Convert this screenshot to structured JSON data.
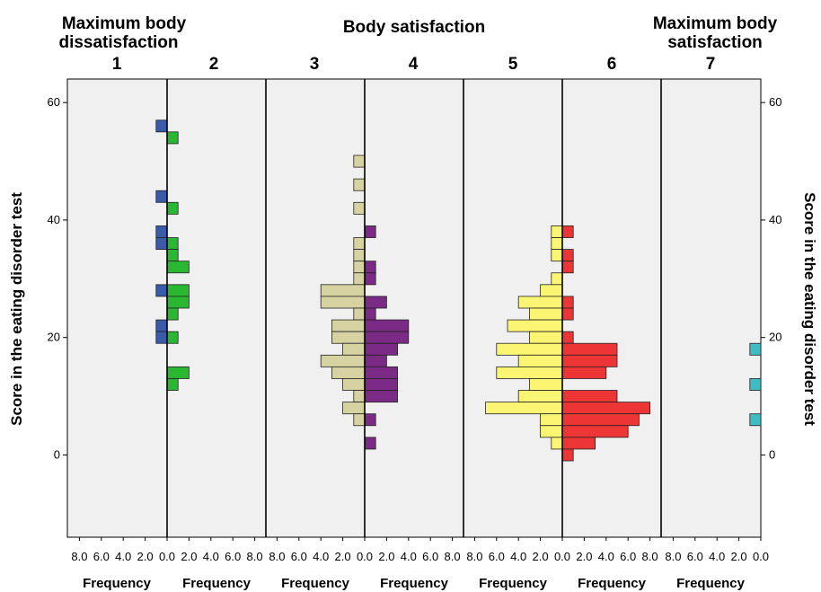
{
  "chart_data": {
    "type": "bar",
    "subtype": "back-to-back frequency histograms (population pyramid style)",
    "headers": {
      "left": [
        "Maximum body",
        "dissatisfaction"
      ],
      "center": "Body satisfaction",
      "right": [
        "Maximum body",
        "satisfaction"
      ]
    },
    "groups": [
      "1",
      "2",
      "3",
      "4",
      "5",
      "6",
      "7"
    ],
    "ylabel": "Score in the eating disorder test",
    "xlabel": "Frequency",
    "ylim": [
      -14,
      64
    ],
    "yticks": [
      0,
      20,
      40,
      60
    ],
    "xlim": [
      0,
      8
    ],
    "xtick_labels": [
      "8.0",
      "6.0",
      "4.0",
      "2.0",
      "0.0",
      "2.0",
      "4.0",
      "6.0",
      "8.0"
    ],
    "xtick_labels_last_panel": [
      "8.0",
      "6.0",
      "4.0",
      "2.0",
      "0.0"
    ],
    "bin_width": 2,
    "grid": false,
    "legend": "none",
    "series": [
      {
        "group": "1",
        "side": "left",
        "color": "#3a5aaa",
        "bins": [
          {
            "y": 56,
            "f": 1
          },
          {
            "y": 44,
            "f": 1
          },
          {
            "y": 38,
            "f": 1
          },
          {
            "y": 36,
            "f": 1
          },
          {
            "y": 28,
            "f": 1
          },
          {
            "y": 22,
            "f": 1
          },
          {
            "y": 20,
            "f": 1
          }
        ]
      },
      {
        "group": "2",
        "side": "right",
        "color": "#2ab832",
        "bins": [
          {
            "y": 54,
            "f": 1
          },
          {
            "y": 42,
            "f": 1
          },
          {
            "y": 36,
            "f": 1
          },
          {
            "y": 34,
            "f": 1
          },
          {
            "y": 32,
            "f": 2
          },
          {
            "y": 28,
            "f": 2
          },
          {
            "y": 26,
            "f": 2
          },
          {
            "y": 24,
            "f": 1
          },
          {
            "y": 20,
            "f": 1
          },
          {
            "y": 14,
            "f": 2
          },
          {
            "y": 12,
            "f": 1
          }
        ]
      },
      {
        "group": "3",
        "side": "left",
        "color": "#d6d2a2",
        "bins": [
          {
            "y": 50,
            "f": 1
          },
          {
            "y": 46,
            "f": 1
          },
          {
            "y": 42,
            "f": 1
          },
          {
            "y": 36,
            "f": 1
          },
          {
            "y": 34,
            "f": 1
          },
          {
            "y": 32,
            "f": 1
          },
          {
            "y": 30,
            "f": 1
          },
          {
            "y": 28,
            "f": 4
          },
          {
            "y": 26,
            "f": 4
          },
          {
            "y": 24,
            "f": 1
          },
          {
            "y": 22,
            "f": 3
          },
          {
            "y": 20,
            "f": 3
          },
          {
            "y": 18,
            "f": 2
          },
          {
            "y": 16,
            "f": 4
          },
          {
            "y": 14,
            "f": 3
          },
          {
            "y": 12,
            "f": 2
          },
          {
            "y": 10,
            "f": 1
          },
          {
            "y": 8,
            "f": 2
          },
          {
            "y": 6,
            "f": 1
          }
        ]
      },
      {
        "group": "4",
        "side": "right",
        "color": "#7b2a86",
        "bins": [
          {
            "y": 38,
            "f": 1
          },
          {
            "y": 32,
            "f": 1
          },
          {
            "y": 30,
            "f": 1
          },
          {
            "y": 26,
            "f": 2
          },
          {
            "y": 24,
            "f": 1
          },
          {
            "y": 22,
            "f": 4
          },
          {
            "y": 20,
            "f": 4
          },
          {
            "y": 18,
            "f": 3
          },
          {
            "y": 16,
            "f": 2
          },
          {
            "y": 14,
            "f": 3
          },
          {
            "y": 12,
            "f": 3
          },
          {
            "y": 10,
            "f": 3
          },
          {
            "y": 6,
            "f": 1
          },
          {
            "y": 2,
            "f": 1
          }
        ]
      },
      {
        "group": "5",
        "side": "left",
        "color": "#fbf574",
        "bins": [
          {
            "y": 38,
            "f": 1
          },
          {
            "y": 36,
            "f": 1
          },
          {
            "y": 34,
            "f": 1
          },
          {
            "y": 30,
            "f": 1
          },
          {
            "y": 28,
            "f": 2
          },
          {
            "y": 26,
            "f": 4
          },
          {
            "y": 24,
            "f": 3
          },
          {
            "y": 22,
            "f": 5
          },
          {
            "y": 20,
            "f": 3
          },
          {
            "y": 18,
            "f": 6
          },
          {
            "y": 16,
            "f": 4
          },
          {
            "y": 14,
            "f": 6
          },
          {
            "y": 12,
            "f": 3
          },
          {
            "y": 10,
            "f": 4
          },
          {
            "y": 8,
            "f": 7
          },
          {
            "y": 6,
            "f": 2
          },
          {
            "y": 4,
            "f": 2
          },
          {
            "y": 2,
            "f": 1
          }
        ]
      },
      {
        "group": "6",
        "side": "right",
        "color": "#ee3535",
        "bins": [
          {
            "y": 38,
            "f": 1
          },
          {
            "y": 34,
            "f": 1
          },
          {
            "y": 32,
            "f": 1
          },
          {
            "y": 26,
            "f": 1
          },
          {
            "y": 24,
            "f": 1
          },
          {
            "y": 20,
            "f": 1
          },
          {
            "y": 18,
            "f": 5
          },
          {
            "y": 16,
            "f": 5
          },
          {
            "y": 14,
            "f": 4
          },
          {
            "y": 10,
            "f": 5
          },
          {
            "y": 8,
            "f": 8
          },
          {
            "y": 6,
            "f": 7
          },
          {
            "y": 4,
            "f": 6
          },
          {
            "y": 2,
            "f": 3
          },
          {
            "y": 0,
            "f": 1
          }
        ]
      },
      {
        "group": "7",
        "side": "left",
        "color": "#3fbcc4",
        "bins": [
          {
            "y": 18,
            "f": 1
          },
          {
            "y": 12,
            "f": 1
          },
          {
            "y": 6,
            "f": 1
          }
        ]
      }
    ]
  }
}
